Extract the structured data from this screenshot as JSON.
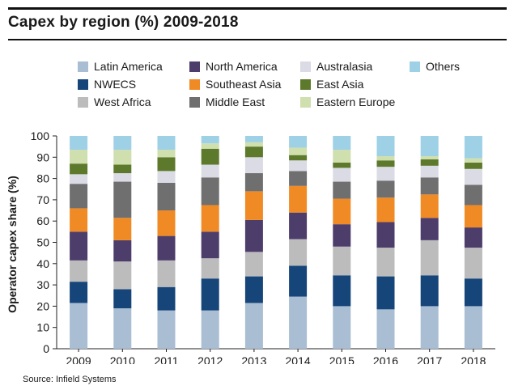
{
  "header": {
    "title": "Capex by region (%) 2009-2018"
  },
  "source": "Source: Infield Systems",
  "chart_data": {
    "type": "bar",
    "stacked": true,
    "title": "Capex by region (%) 2009-2018",
    "xlabel": "",
    "ylabel": "Operator capex share (%)",
    "ylim": [
      0,
      100
    ],
    "yticks": [
      0,
      10,
      20,
      30,
      40,
      50,
      60,
      70,
      80,
      90,
      100
    ],
    "grid": false,
    "legend_position": "top",
    "categories": [
      "2009",
      "2010",
      "2011",
      "2012",
      "2013",
      "2014",
      "2015",
      "2016",
      "2017",
      "2018"
    ],
    "series": [
      {
        "name": "Latin America",
        "color": "#a9bdd3",
        "values": [
          21.5,
          19,
          18,
          18,
          21.5,
          24.5,
          20,
          18.5,
          20,
          20
        ]
      },
      {
        "name": "NWECS",
        "color": "#16457a",
        "values": [
          10,
          9,
          11,
          15,
          12.5,
          14.5,
          14.5,
          15.5,
          14.5,
          13
        ]
      },
      {
        "name": "West Africa",
        "color": "#bcbcbc",
        "values": [
          10,
          13,
          12.5,
          9.5,
          11.5,
          12.5,
          13.5,
          13.5,
          16.5,
          14.5
        ]
      },
      {
        "name": "North America",
        "color": "#4d3d6b",
        "values": [
          13.5,
          10,
          11.5,
          12.5,
          15,
          12.5,
          10.5,
          12,
          10.5,
          9.5
        ]
      },
      {
        "name": "Southeast Asia",
        "color": "#f08a24",
        "values": [
          11,
          10.5,
          12,
          12.5,
          13.5,
          12.5,
          12,
          11.5,
          11,
          10.5
        ]
      },
      {
        "name": "Middle East",
        "color": "#6f6f6f",
        "values": [
          11.5,
          17,
          13,
          13,
          8.5,
          7,
          8,
          8,
          8,
          9.5
        ]
      },
      {
        "name": "Australasia",
        "color": "#dadbe4",
        "values": [
          4.5,
          4,
          5.5,
          6,
          7.5,
          5,
          6.5,
          6.5,
          5.5,
          7.5
        ]
      },
      {
        "name": "East Asia",
        "color": "#5d7a2c",
        "values": [
          5,
          4,
          6.5,
          7.5,
          5,
          2.5,
          2.5,
          3,
          3,
          3
        ]
      },
      {
        "name": "Eastern Europe",
        "color": "#d0dfae",
        "values": [
          6.5,
          7,
          3.5,
          2.5,
          2,
          3.5,
          6,
          2,
          1.5,
          2
        ]
      },
      {
        "name": "Others",
        "color": "#9ed0e6",
        "values": [
          6.5,
          6.5,
          6.5,
          3.5,
          3,
          5.5,
          6.5,
          9.5,
          9.5,
          10.5
        ]
      }
    ]
  }
}
